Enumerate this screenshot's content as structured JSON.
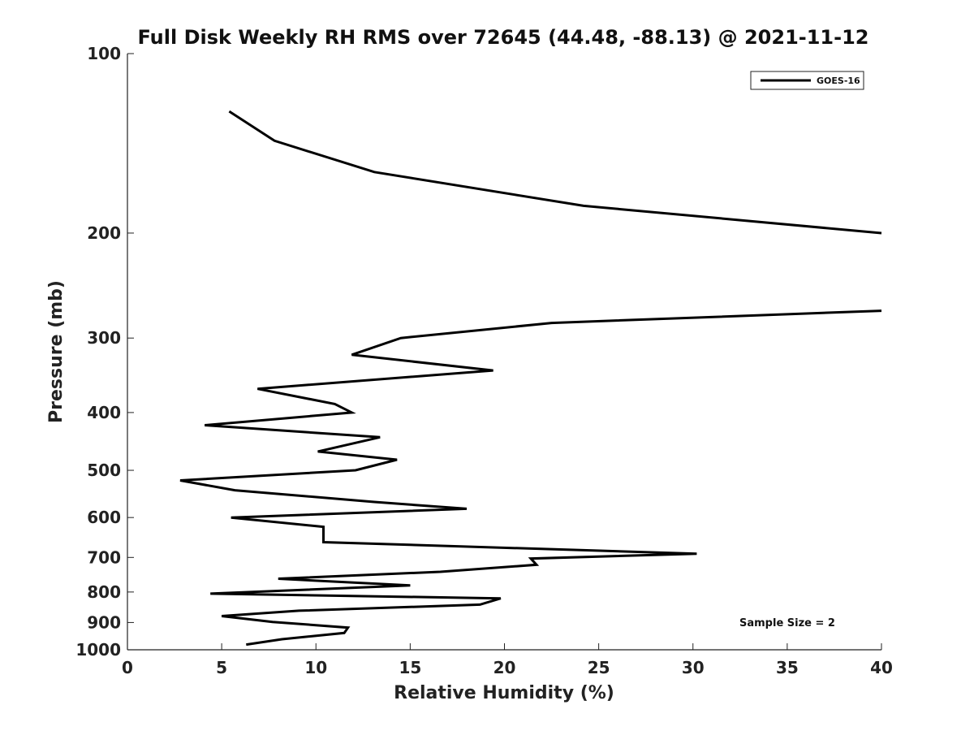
{
  "chart_data": {
    "type": "line",
    "title": "Full Disk Weekly RH RMS over 72645 (44.48, -88.13) @ 2021-11-12",
    "xlabel": "Relative Humidity (%)",
    "ylabel": "Pressure (mb)",
    "xlim": [
      0,
      40
    ],
    "ylim": [
      100,
      1000
    ],
    "yscale": "log",
    "reverse_y": true,
    "grid": false,
    "legend_position": "top-right",
    "xticks": [
      0,
      5,
      10,
      15,
      20,
      25,
      30,
      35,
      40
    ],
    "yticks": [
      100,
      200,
      300,
      400,
      500,
      600,
      700,
      800,
      900,
      1000
    ],
    "series": [
      {
        "name": "GOES-16",
        "color": "#000000",
        "segments": [
          [
            [
              5.4,
              125
            ],
            [
              7.8,
              140
            ],
            [
              13.1,
              158
            ],
            [
              24.2,
              180
            ],
            [
              40,
              200
            ]
          ],
          [
            [
              40,
              270
            ],
            [
              22.5,
              283
            ],
            [
              14.5,
              300
            ],
            [
              11.9,
              320
            ],
            [
              19.4,
              340
            ],
            [
              6.9,
              365
            ],
            [
              11.0,
              387
            ],
            [
              11.9,
              400
            ],
            [
              4.1,
              420
            ],
            [
              13.4,
              440
            ],
            [
              10.1,
              465
            ],
            [
              14.3,
              480
            ],
            [
              12.1,
              500
            ],
            [
              2.8,
              520
            ],
            [
              5.7,
              540
            ],
            [
              13.1,
              565
            ],
            [
              18.0,
              580
            ],
            [
              5.5,
              600
            ],
            [
              10.4,
              622
            ],
            [
              10.4,
              660
            ],
            [
              30.2,
              690
            ],
            [
              21.4,
              703
            ],
            [
              21.7,
              720
            ],
            [
              16.6,
              740
            ],
            [
              8.0,
              760
            ],
            [
              15.0,
              780
            ],
            [
              4.4,
              805
            ],
            [
              19.8,
              820
            ],
            [
              18.7,
              840
            ],
            [
              9.1,
              860
            ],
            [
              5.0,
              878
            ],
            [
              7.7,
              898
            ],
            [
              11.7,
              918
            ],
            [
              11.5,
              937
            ],
            [
              8.2,
              960
            ],
            [
              6.3,
              980
            ]
          ]
        ]
      }
    ],
    "annotation": "Sample Size = 2"
  }
}
